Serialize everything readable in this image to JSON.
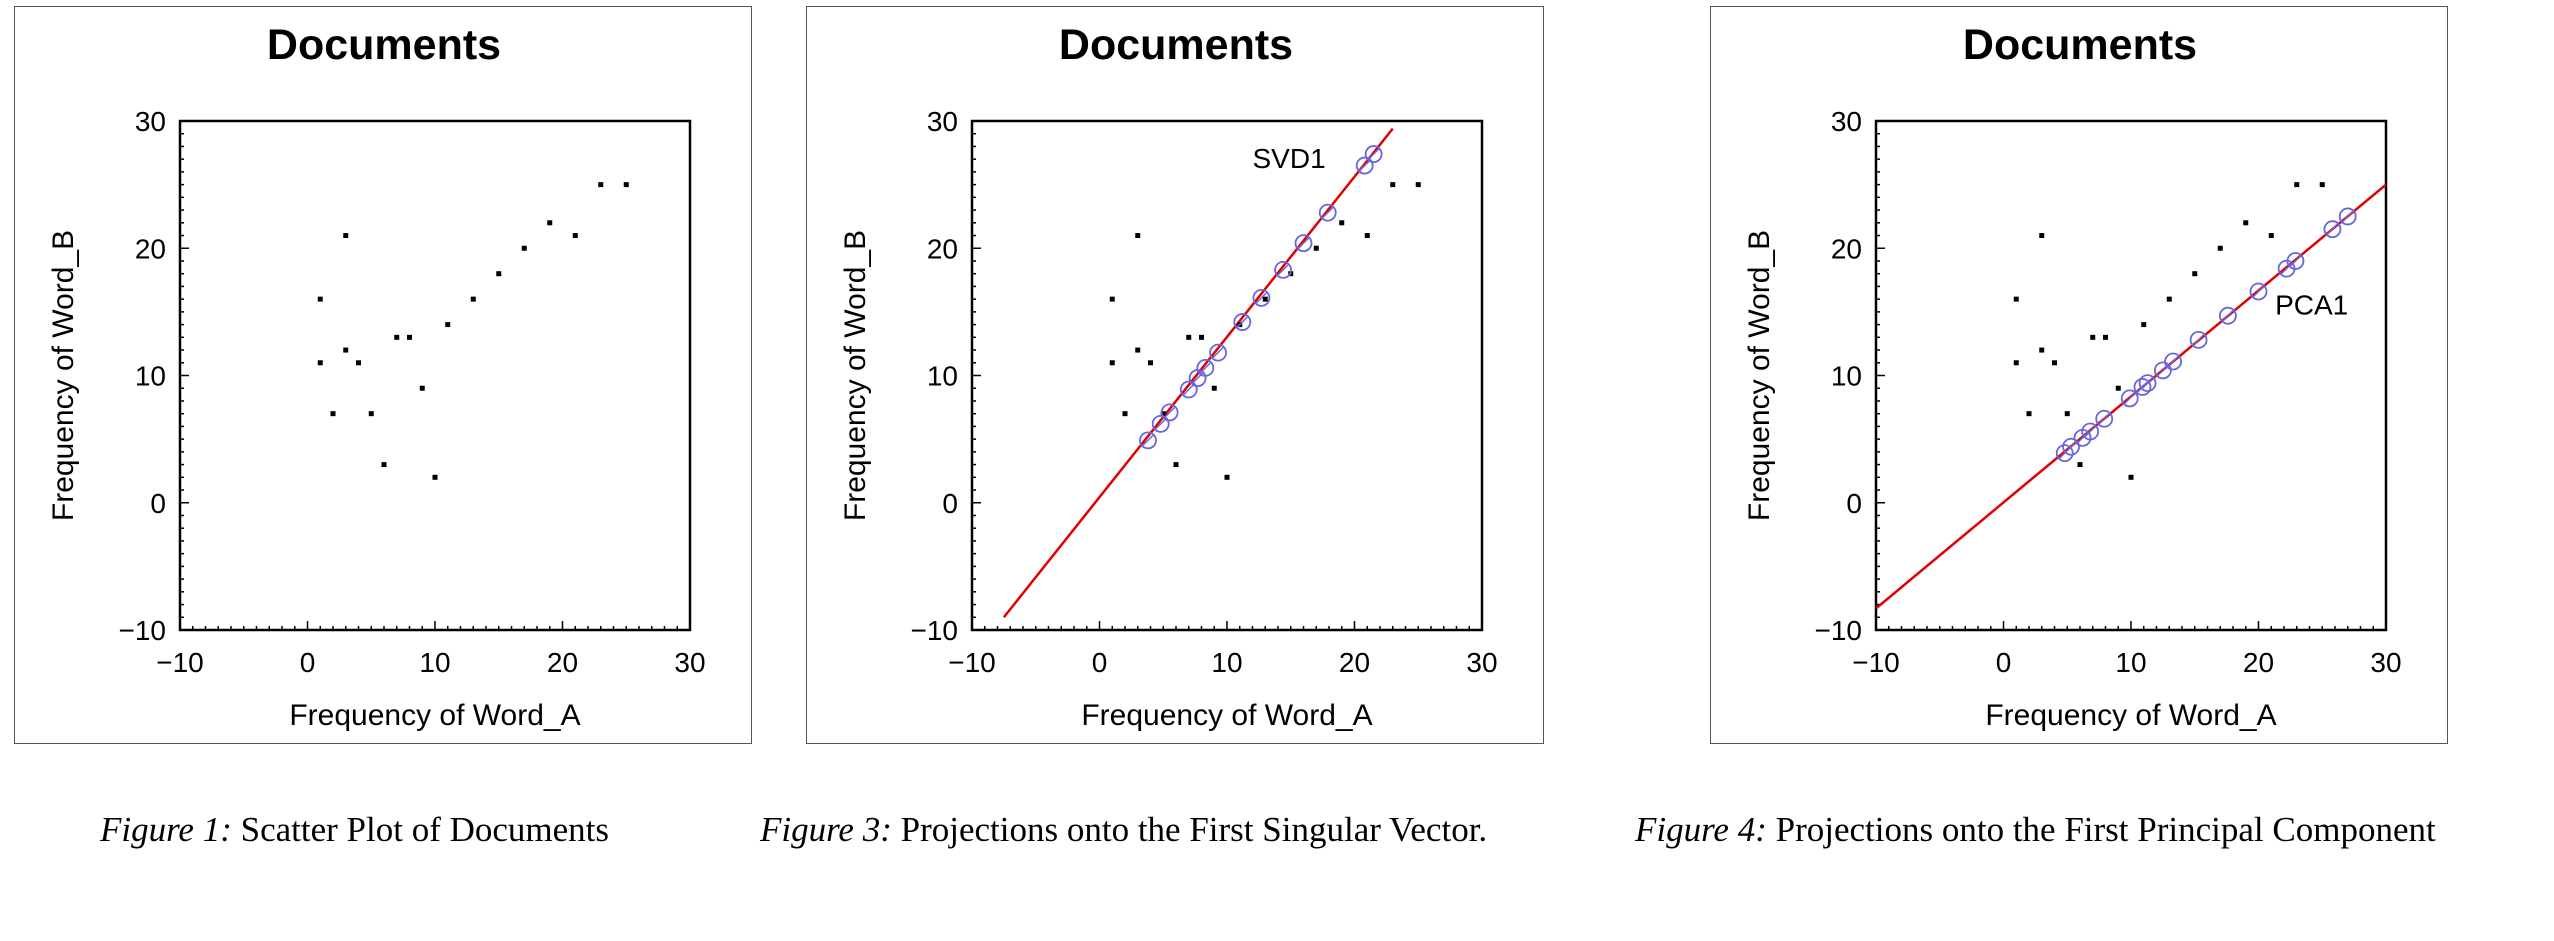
{
  "chart_data": [
    {
      "type": "scatter",
      "title": "Documents",
      "xlabel": "Frequency of Word_A",
      "ylabel": "Frequency of Word_B",
      "xlim": [
        -10,
        30
      ],
      "ylim": [
        -10,
        30
      ],
      "xticks": [
        "−10",
        "0",
        "10",
        "20",
        "30"
      ],
      "yticks": [
        "−10",
        "0",
        "10",
        "20",
        "30"
      ],
      "points": [
        [
          1,
          16
        ],
        [
          1,
          11
        ],
        [
          2,
          7
        ],
        [
          3,
          21
        ],
        [
          3,
          12
        ],
        [
          4,
          11
        ],
        [
          5,
          7
        ],
        [
          6,
          3
        ],
        [
          7,
          13
        ],
        [
          8,
          13
        ],
        [
          9,
          9
        ],
        [
          10,
          2
        ],
        [
          11,
          14
        ],
        [
          13,
          16
        ],
        [
          15,
          18
        ],
        [
          17,
          20
        ],
        [
          19,
          22
        ],
        [
          21,
          21
        ],
        [
          23,
          25
        ],
        [
          25,
          25
        ]
      ]
    },
    {
      "type": "scatter",
      "title": "Documents",
      "xlabel": "Frequency of Word_A",
      "ylabel": "Frequency of Word_B",
      "xlim": [
        -10,
        30
      ],
      "ylim": [
        -10,
        30
      ],
      "xticks": [
        "−10",
        "0",
        "10",
        "20",
        "30"
      ],
      "yticks": [
        "−10",
        "0",
        "10",
        "20",
        "30"
      ],
      "points": [
        [
          1,
          16
        ],
        [
          1,
          11
        ],
        [
          2,
          7
        ],
        [
          3,
          21
        ],
        [
          3,
          12
        ],
        [
          4,
          11
        ],
        [
          5,
          7
        ],
        [
          6,
          3
        ],
        [
          7,
          13
        ],
        [
          8,
          13
        ],
        [
          9,
          9
        ],
        [
          10,
          2
        ],
        [
          11,
          14
        ],
        [
          13,
          16
        ],
        [
          15,
          18
        ],
        [
          17,
          20
        ],
        [
          19,
          22
        ],
        [
          21,
          21
        ],
        [
          23,
          25
        ],
        [
          25,
          25
        ]
      ],
      "line": {
        "label": "SVD1",
        "color": "#e00000",
        "through": [
          [
            -7.5,
            -9
          ],
          [
            23,
            29.4
          ]
        ]
      },
      "projections": [
        [
          3.8,
          4.9
        ],
        [
          4.8,
          6.2
        ],
        [
          5.5,
          7.1
        ],
        [
          7,
          8.9
        ],
        [
          7.7,
          9.8
        ],
        [
          8.3,
          10.6
        ],
        [
          9.3,
          11.8
        ],
        [
          11.2,
          14.2
        ],
        [
          12.7,
          16.1
        ],
        [
          14.4,
          18.3
        ],
        [
          16,
          20.4
        ],
        [
          17.9,
          22.8
        ],
        [
          20.8,
          26.5
        ],
        [
          21.5,
          27.4
        ]
      ],
      "projection_color": "#6666dd"
    },
    {
      "type": "scatter",
      "title": "Documents",
      "xlabel": "Frequency of Word_A",
      "ylabel": "Frequency of Word_B",
      "xlim": [
        -10,
        30
      ],
      "ylim": [
        -10,
        30
      ],
      "xticks": [
        "−10",
        "0",
        "10",
        "20",
        "30"
      ],
      "yticks": [
        "−10",
        "0",
        "10",
        "20",
        "30"
      ],
      "points": [
        [
          1,
          16
        ],
        [
          1,
          11
        ],
        [
          2,
          7
        ],
        [
          3,
          21
        ],
        [
          3,
          12
        ],
        [
          4,
          11
        ],
        [
          5,
          7
        ],
        [
          6,
          3
        ],
        [
          7,
          13
        ],
        [
          8,
          13
        ],
        [
          9,
          9
        ],
        [
          10,
          2
        ],
        [
          11,
          14
        ],
        [
          13,
          16
        ],
        [
          15,
          18
        ],
        [
          17,
          20
        ],
        [
          19,
          22
        ],
        [
          21,
          21
        ],
        [
          23,
          25
        ],
        [
          25,
          25
        ]
      ],
      "line": {
        "label": "PCA1",
        "color": "#e00000",
        "through": [
          [
            -10,
            -8.3
          ],
          [
            30,
            25
          ]
        ]
      },
      "projections": [
        [
          4.8,
          3.9
        ],
        [
          5.3,
          4.4
        ],
        [
          6.2,
          5.1
        ],
        [
          6.8,
          5.6
        ],
        [
          7.9,
          6.6
        ],
        [
          9.9,
          8.2
        ],
        [
          10.9,
          9.1
        ],
        [
          11.3,
          9.4
        ],
        [
          12.5,
          10.4
        ],
        [
          13.3,
          11.1
        ],
        [
          15.3,
          12.8
        ],
        [
          17.6,
          14.7
        ],
        [
          20,
          16.6
        ],
        [
          22.2,
          18.4
        ],
        [
          22.9,
          19
        ],
        [
          25.8,
          21.5
        ],
        [
          27,
          22.5
        ]
      ],
      "projection_color": "#6666dd"
    }
  ],
  "captions": [
    {
      "fig": "Figure 1:",
      "text": " Scatter Plot of Documents"
    },
    {
      "fig": "Figure 3:",
      "text": " Projections onto the First Singular Vector."
    },
    {
      "fig": "Figure 4:",
      "text": " Projections onto the First Principal Component"
    }
  ]
}
